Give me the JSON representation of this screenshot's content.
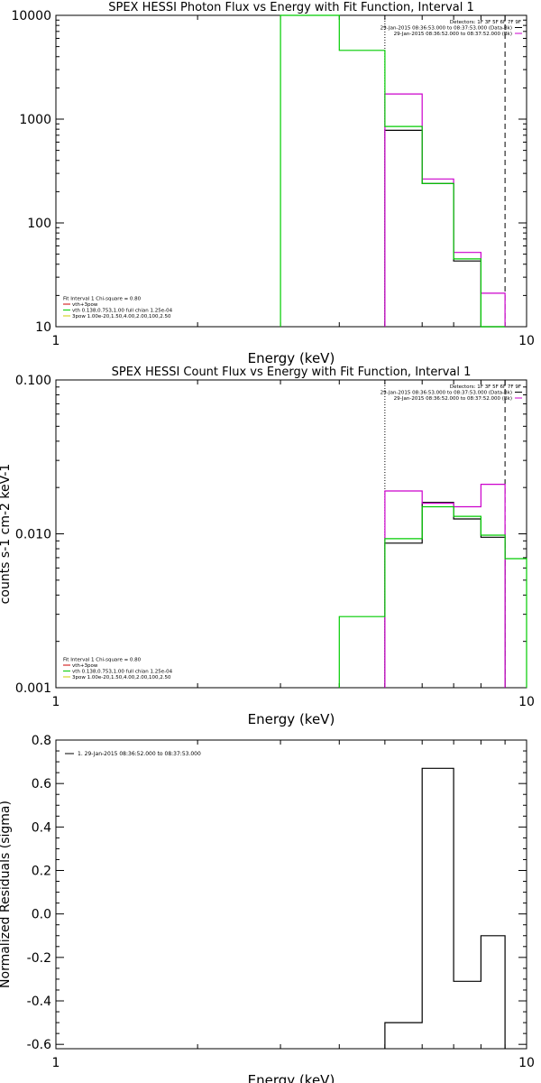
{
  "chart_data": [
    {
      "type": "line",
      "title": "SPEX HESSI Photon Flux vs Energy with Fit Function, Interval 1",
      "xlabel": "Energy (keV)",
      "ylabel": "",
      "x_scale": "log",
      "y_scale": "log",
      "xlim": [
        1,
        10
      ],
      "ylim": [
        10,
        10000
      ],
      "x_ticks": [
        {
          "value": 1,
          "label": "1"
        },
        {
          "value": 10,
          "label": "10"
        }
      ],
      "y_ticks": [
        {
          "value": 10,
          "label": "10"
        },
        {
          "value": 100,
          "label": "100"
        },
        {
          "value": 1000,
          "label": "1000"
        },
        {
          "value": 10000,
          "label": "10000"
        }
      ],
      "vlines": [
        {
          "x": 5.0,
          "style": "dotted",
          "color": "#000000"
        },
        {
          "x": 9.0,
          "style": "dashed",
          "color": "#000000"
        }
      ],
      "legend_top_right": [
        "Detectors: 1F 3F 5F 6F 7F 9F",
        "29-Jan-2015 08:36:53.000 to 08:37:53.000 (Data-Bk)",
        "29-Jan-2015 08:36:52.000 to 08:37:52.000 (Bk)"
      ],
      "legend_top_right_colors": [
        "",
        "#000000",
        "#cc00cc"
      ],
      "legend_bottom_left": [
        "Fit Interval 1    Chi-square = 0.80",
        "vth+3pow",
        "vth 0.138,0.753,1.00  full chian 1.25e-04",
        "3pow 1.00e-20,1.50,4.00,2.00,100,2.50"
      ],
      "legend_bottom_left_colors": [
        "",
        "#cc0000",
        "#00cc00",
        "#cccc00"
      ],
      "series": [
        {
          "color": "#000000",
          "edges": [
            5.0,
            6.0,
            7.0,
            8.0,
            9.0
          ],
          "values": [
            780,
            240,
            43,
            9.6
          ]
        },
        {
          "color": "#cc00cc",
          "edges": [
            5.0,
            6.0,
            7.0,
            8.0,
            9.0
          ],
          "values": [
            1750,
            265,
            52,
            21
          ]
        },
        {
          "color": "#00cc00",
          "edges": [
            3.0,
            4.0,
            5.0,
            6.0,
            7.0,
            8.0,
            9.0
          ],
          "values": [
            10000,
            4600,
            850,
            240,
            45,
            9.8
          ]
        }
      ]
    },
    {
      "type": "line",
      "title": "SPEX HESSI Count Flux vs Energy with Fit Function, Interval 1",
      "xlabel": "Energy (keV)",
      "ylabel": "counts s-1 cm-2 keV-1",
      "x_scale": "log",
      "y_scale": "log",
      "xlim": [
        1,
        10
      ],
      "ylim": [
        0.001,
        0.1
      ],
      "x_ticks": [
        {
          "value": 1,
          "label": "1"
        },
        {
          "value": 10,
          "label": "10"
        }
      ],
      "y_ticks": [
        {
          "value": 0.001,
          "label": "0.001"
        },
        {
          "value": 0.01,
          "label": "0.010"
        },
        {
          "value": 0.1,
          "label": "0.100"
        }
      ],
      "vlines": [
        {
          "x": 5.0,
          "style": "dotted",
          "color": "#000000"
        },
        {
          "x": 9.0,
          "style": "dashed",
          "color": "#000000"
        }
      ],
      "legend_top_right": [
        "Detectors: 1F 3F 5F 6F 7F 9F",
        "29-Jan-2015 08:36:53.000 to 08:37:53.000 (Data-Bk)",
        "29-Jan-2015 08:36:52.000 to 08:37:52.000 (Bk)"
      ],
      "legend_top_right_colors": [
        "",
        "#000000",
        "#cc00cc"
      ],
      "legend_bottom_left": [
        "Fit Interval 1    Chi-square = 0.80",
        "vth+3pow",
        "vth 0.138,0.753,1.00  full chian 1.25e-04",
        "3pow 1.00e-20,1.50,4.00,2.00,100,2.50"
      ],
      "legend_bottom_left_colors": [
        "",
        "#cc0000",
        "#00cc00",
        "#cccc00"
      ],
      "series": [
        {
          "color": "#000000",
          "edges": [
            5.0,
            6.0,
            7.0,
            8.0,
            9.0
          ],
          "values": [
            0.0087,
            0.016,
            0.0125,
            0.0095
          ]
        },
        {
          "color": "#cc00cc",
          "edges": [
            5.0,
            6.0,
            7.0,
            8.0,
            9.0
          ],
          "values": [
            0.019,
            0.0158,
            0.015,
            0.021
          ]
        },
        {
          "color": "#00cc00",
          "edges": [
            4.0,
            5.0,
            6.0,
            7.0,
            8.0,
            9.0,
            10.0
          ],
          "values": [
            0.0029,
            0.0093,
            0.015,
            0.013,
            0.0098,
            0.0069
          ]
        }
      ]
    },
    {
      "type": "line",
      "title": "",
      "xlabel": "Energy (keV)",
      "ylabel": "Normalized Residuals (sigma)",
      "x_scale": "log",
      "y_scale": "linear",
      "xlim": [
        1,
        10
      ],
      "ylim": [
        -0.62,
        0.8
      ],
      "x_ticks": [
        {
          "value": 1,
          "label": "1"
        },
        {
          "value": 10,
          "label": "10"
        }
      ],
      "y_ticks": [
        {
          "value": -0.6,
          "label": "-0.6"
        },
        {
          "value": -0.4,
          "label": "-0.4"
        },
        {
          "value": -0.2,
          "label": "-0.2"
        },
        {
          "value": 0.0,
          "label": "0.0"
        },
        {
          "value": 0.2,
          "label": "0.2"
        },
        {
          "value": 0.4,
          "label": "0.4"
        },
        {
          "value": 0.6,
          "label": "0.6"
        },
        {
          "value": 0.8,
          "label": "0.8"
        }
      ],
      "vlines": [],
      "legend_top_left": [
        "1. 29-Jan-2015 08:36:52.000 to 08:37:53.000"
      ],
      "legend_top_left_colors": [
        "#000000"
      ],
      "series": [
        {
          "color": "#000000",
          "edges": [
            5.0,
            6.0,
            7.0,
            8.0,
            9.0
          ],
          "values": [
            -0.5,
            0.67,
            -0.31,
            -0.1
          ],
          "drop_to_axis": true
        }
      ]
    }
  ]
}
